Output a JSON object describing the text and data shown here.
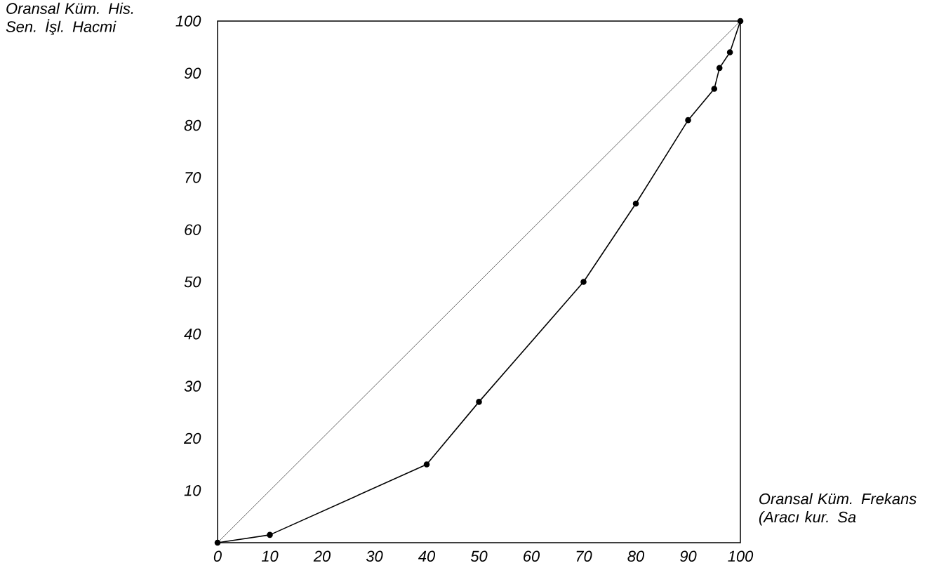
{
  "chart_data": {
    "type": "line",
    "xlabel": "Oransal Küm. Frekans (Aracı kur. Sa",
    "ylabel": "Oransal Küm. His. Sen. İşl. Hacmi",
    "xlim": [
      0,
      100
    ],
    "ylim": [
      0,
      100
    ],
    "xticks": [
      0,
      10,
      20,
      30,
      40,
      50,
      60,
      70,
      80,
      90,
      100
    ],
    "yticks": [
      10,
      20,
      30,
      40,
      50,
      60,
      70,
      80,
      90,
      100
    ],
    "grid": false,
    "series": [
      {
        "color": "#000000",
        "marker": "circle",
        "x": [
          0,
          10,
          40,
          50,
          70,
          80,
          90,
          95,
          96,
          98,
          100
        ],
        "values": [
          0,
          1.5,
          15,
          27,
          50,
          65,
          81,
          87,
          91,
          94,
          100
        ]
      },
      {
        "color": "#000000",
        "marker": "none",
        "x": [
          0,
          100
        ],
        "values": [
          0,
          100
        ]
      }
    ]
  }
}
